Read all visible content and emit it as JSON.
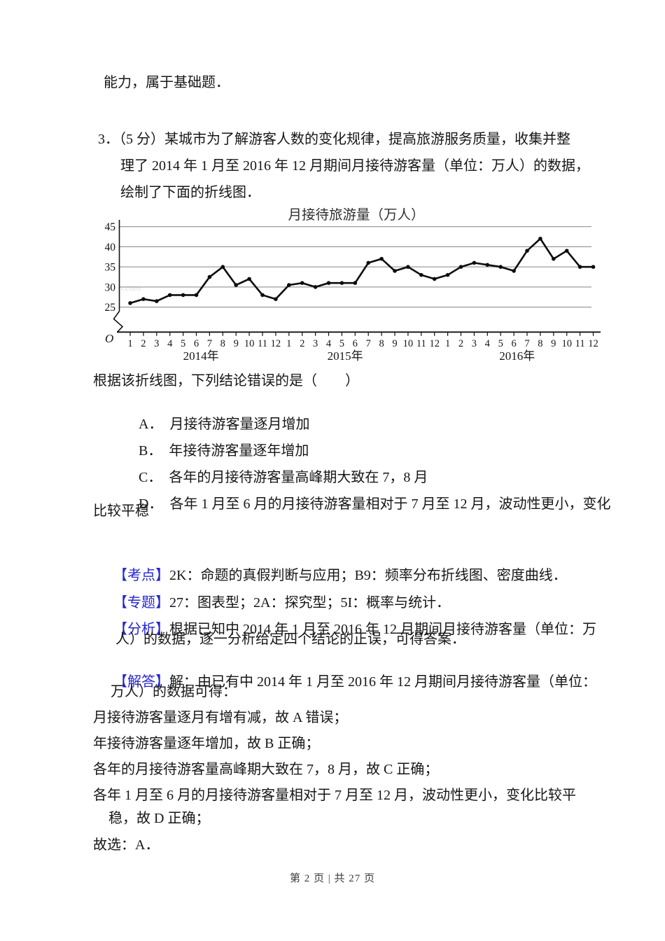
{
  "colors": {
    "accent_blue": "#2626cf",
    "text": "#161616",
    "gridline": "#909090",
    "footer_text": "#3b3b3b"
  },
  "carryover_line": "能力，属于基础题．",
  "question": {
    "line1": "3．（5 分）某城市为了解游客人数的变化规律，提高旅游服务质量，收集并整",
    "line2": "理了 2014 年 1 月至 2016 年 12 月期间月接待游客量（单位：万人）的数据，",
    "line3": "绘制了下面的折线图．",
    "stem": "根据该折线图，下列结论错误的是（　　）",
    "options": [
      {
        "label": "A．",
        "text": "月接待游客量逐月增加"
      },
      {
        "label": "B．",
        "text": "年接待游客量逐年增加"
      },
      {
        "label": "C．",
        "text": "各年的月接待游客量高峰期大致在 7，8 月"
      },
      {
        "label": "D．",
        "text": "各年 1 月至 6 月的月接待游客量相对于 7 月至 12 月，波动性更小，变化"
      }
    ],
    "option_d_continuation": "比较平稳"
  },
  "chart_data": {
    "type": "line",
    "title": "月接待旅游量（万人）",
    "origin_label": "O",
    "ylabel": "",
    "xlabel": "",
    "y_ticks": [
      25,
      30,
      35,
      40,
      45
    ],
    "ylim_display": [
      25,
      45
    ],
    "axis_break": true,
    "grid": true,
    "legend": "none",
    "watermark_fragment": "o.com",
    "month_labels": [
      "1",
      "2",
      "3",
      "4",
      "5",
      "6",
      "7",
      "8",
      "9",
      "10",
      "11",
      "12"
    ],
    "years": [
      {
        "label": "2014年",
        "values": [
          26,
          27,
          26.5,
          28,
          28,
          28,
          32.5,
          35,
          30.5,
          32,
          28,
          27
        ]
      },
      {
        "label": "2015年",
        "values": [
          30.5,
          31,
          30,
          31,
          31,
          31,
          36,
          37,
          34,
          35,
          33,
          32
        ]
      },
      {
        "label": "2016年",
        "values": [
          33,
          35,
          36,
          35.5,
          35,
          34,
          39,
          42,
          37,
          39,
          35,
          35
        ]
      }
    ]
  },
  "meta": {
    "kaodian_label": "【考点】",
    "kaodian_text": "2K：命题的真假判断与应用；B9：频率分布折线图、密度曲线．",
    "zhuanti_label": "【专题】",
    "zhuanti_text": "27：图表型；2A：探究型；5I：概率与统计．",
    "fenxi_label": "【分析】",
    "fenxi_text_1": "根据已知中 2014 年 1 月至 2016 年 12 月期间月接待游客量（单位：万",
    "fenxi_text_2": "人）的数据，逐一分析给定四个结论的正误，可得答案．",
    "jieda_label": "【解答】",
    "jieda_text_1": "解：由已有中 2014 年 1 月至 2016 年 12 月期间月接待游客量（单位：",
    "jieda_text_2": "万人）的数据可得："
  },
  "solution": {
    "lines": [
      "月接待游客量逐月有增有减，故 A 错误；",
      "年接待游客量逐年增加，故 B 正确；",
      "各年的月接待游客量高峰期大致在 7，8 月，故 C 正确；",
      "各年 1 月至 6 月的月接待游客量相对于 7 月至 12 月，波动性更小，变化比较平",
      "稳，故 D 正确；",
      "故选：A．"
    ]
  },
  "footer": {
    "text": "第 2 页 | 共 27 页"
  }
}
